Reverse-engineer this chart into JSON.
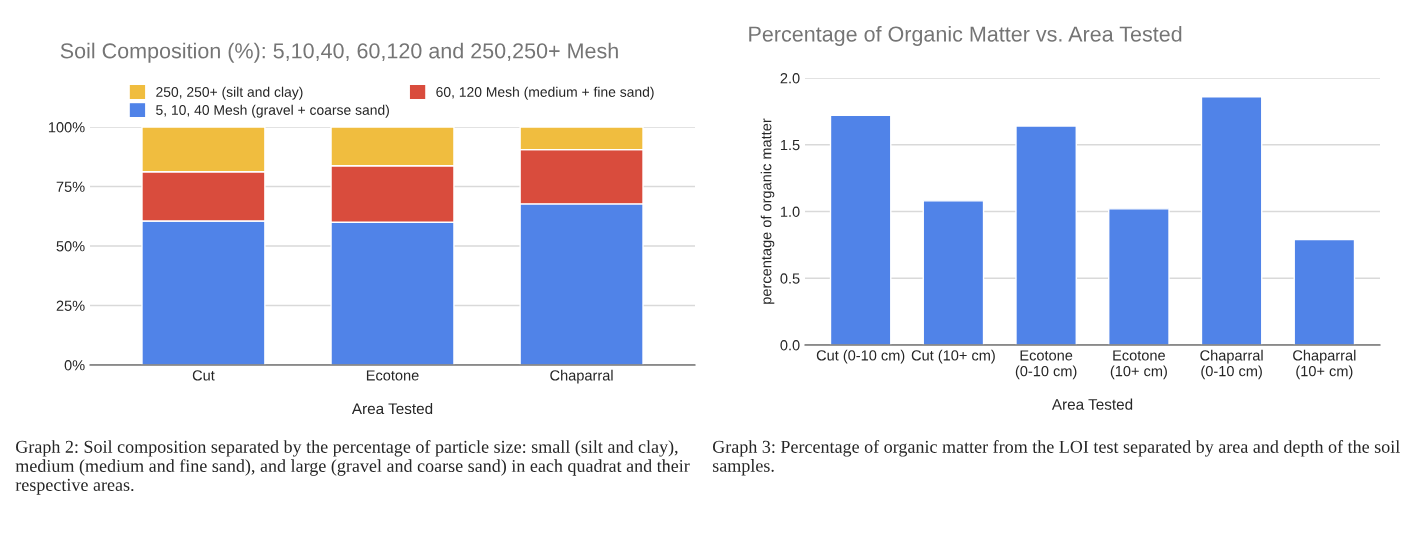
{
  "chart_data": [
    {
      "type": "bar",
      "title": "Soil Composition (%): 5,10,40, 60,120 and 250,250+ Mesh",
      "xlabel": "Area Tested",
      "categories": [
        "Cut",
        "Ecotone",
        "Chaparral"
      ],
      "stacked": true,
      "series": [
        {
          "name": "5, 10, 40 Mesh (gravel + coarse sand)",
          "color": "#5083e8",
          "values": [
            60.5,
            60.0,
            67.7
          ]
        },
        {
          "name": "60, 120 Mesh (medium + fine sand)",
          "color": "#d94c3d",
          "values": [
            20.7,
            23.7,
            22.8
          ]
        },
        {
          "name": "250, 250+ (silt and clay)",
          "color": "#f0bd3f",
          "values": [
            18.8,
            16.3,
            9.5
          ]
        }
      ],
      "ylim": [
        0,
        100
      ],
      "yticks": [
        {
          "value": 0,
          "label": "0%"
        },
        {
          "value": 25,
          "label": "25%"
        },
        {
          "value": 50,
          "label": "50%"
        },
        {
          "value": 75,
          "label": "75%"
        },
        {
          "value": 100,
          "label": "100%"
        }
      ],
      "grid": "y",
      "legend": "top",
      "annotations": [
        "Graph 2: Soil composition separated by the percentage of particle size: small (silt and clay), medium (medium and fine sand), and large (gravel and coarse sand) in each quadrat and their respective areas."
      ]
    },
    {
      "type": "bar",
      "title": "Percentage of Organic Matter vs. Area Tested",
      "xlabel": "Area Tested",
      "ylabel": "percentage of organic matter",
      "categories": [
        "Cut (0-10 cm)",
        "Cut (10+ cm)",
        "Ecotone (0-10 cm)",
        "Ecotone (10+ cm)",
        "Chaparral (0-10 cm)",
        "Chaparral (10+ cm)"
      ],
      "series": [
        {
          "color": "#5083e8",
          "values": [
            1.72,
            1.08,
            1.64,
            1.02,
            1.86,
            0.79
          ]
        }
      ],
      "ylim": [
        0,
        2.0
      ],
      "yticks": [
        {
          "value": 0,
          "label": "0.0"
        },
        {
          "value": 0.5,
          "label": "0.5"
        },
        {
          "value": 1.0,
          "label": "1.0"
        },
        {
          "value": 1.5,
          "label": "1.5"
        },
        {
          "value": 2.0,
          "label": "2.0"
        }
      ],
      "grid": "y",
      "annotations": [
        "Graph 3: Percentage of organic matter from the LOI test separated by area and depth of the soil samples."
      ]
    }
  ]
}
